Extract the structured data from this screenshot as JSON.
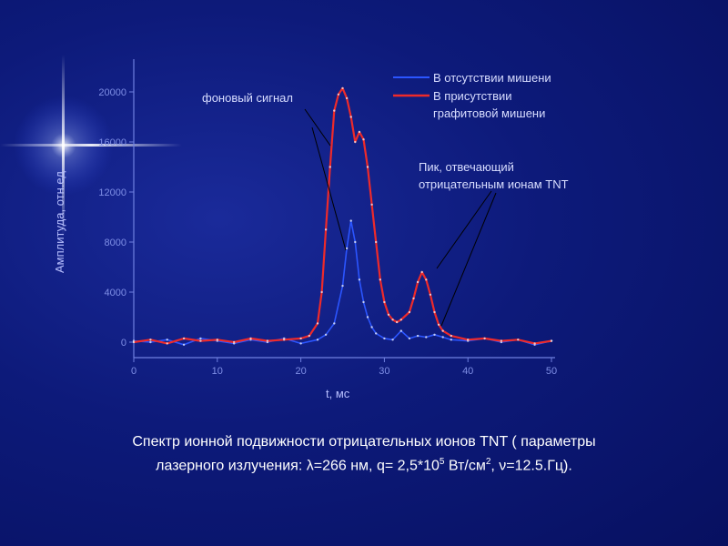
{
  "chart_data": {
    "type": "line",
    "xlabel": "t, мс",
    "ylabel": "Амплитуда, отн.ед.",
    "xlim": [
      0,
      50
    ],
    "ylim": [
      -800,
      22500
    ],
    "xticks": [
      "0",
      "10",
      "20",
      "30",
      "40",
      "50"
    ],
    "yticks": [
      "0",
      "4000",
      "8000",
      "12000",
      "16000",
      "20000"
    ],
    "series": [
      {
        "name": "В отсутствии мишени",
        "color": "#2b55ff",
        "x": [
          0,
          2,
          4,
          6,
          8,
          10,
          12,
          14,
          16,
          18,
          20,
          22,
          23,
          24,
          25,
          25.5,
          26,
          26.5,
          27,
          27.5,
          28,
          28.5,
          29,
          30,
          31,
          32,
          33,
          34,
          35,
          36,
          37,
          38,
          40,
          42,
          44,
          46,
          48,
          50
        ],
        "y": [
          100,
          0,
          200,
          -200,
          300,
          100,
          -100,
          200,
          0,
          300,
          -100,
          200,
          600,
          1500,
          4500,
          7500,
          9700,
          8000,
          5000,
          3200,
          2000,
          1200,
          700,
          300,
          200,
          900,
          300,
          500,
          400,
          600,
          400,
          200,
          100,
          300,
          0,
          200,
          -200,
          100
        ]
      },
      {
        "name": "В присутствии графитовой мишени",
        "color": "#ee2a2a",
        "x": [
          0,
          2,
          4,
          6,
          8,
          10,
          12,
          14,
          16,
          18,
          20,
          21,
          22,
          22.5,
          23,
          23.5,
          24,
          24.5,
          25,
          25.5,
          26,
          26.5,
          27,
          27.5,
          28,
          28.5,
          29,
          29.5,
          30,
          30.5,
          31,
          31.5,
          32,
          33,
          33.5,
          34,
          34.5,
          35,
          35.5,
          36,
          36.5,
          37,
          38,
          40,
          42,
          44,
          46,
          48,
          50
        ],
        "y": [
          0,
          200,
          -100,
          300,
          100,
          200,
          0,
          300,
          100,
          200,
          300,
          500,
          1500,
          4000,
          9000,
          14000,
          18500,
          19800,
          20300,
          19500,
          18000,
          16000,
          16800,
          16200,
          14000,
          11000,
          8000,
          5000,
          3200,
          2200,
          1800,
          1600,
          1800,
          2400,
          3500,
          4800,
          5600,
          5000,
          3800,
          2400,
          1400,
          900,
          500,
          200,
          300,
          100,
          200,
          -100,
          100
        ]
      }
    ],
    "annotations": {
      "background": "фоновый сигнал",
      "peak_line1": "Пик, отвечающий",
      "peak_line2": "отрицательным ионам TNT"
    },
    "legend": {
      "item1": "В отсутствии мишени",
      "item2_line1": "В присутствии",
      "item2_line2": "графитовой мишени"
    }
  },
  "caption": {
    "line1": "Спектр ионной подвижности отрицательных ионов TNT  ( параметры",
    "line2_a": "лазерного излучения: λ=266 нм,  q= 2,5*10",
    "sup1": "5",
    "line2_b": " Вт/см",
    "sup2": "2",
    "line2_c": ", ν=12.5.Гц)."
  }
}
